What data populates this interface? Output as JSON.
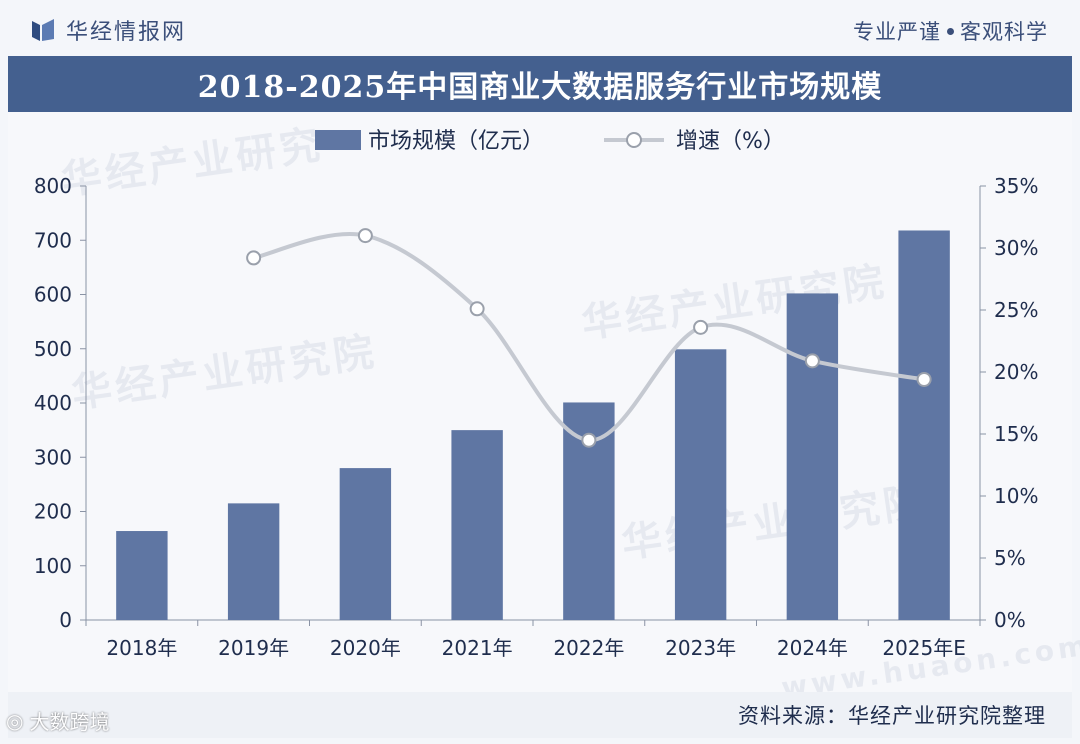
{
  "header": {
    "brand": "华经情报网",
    "slogan_left": "专业严谨",
    "slogan_right": "客观科学"
  },
  "footer": {
    "source": "资料来源：华经产业研究院整理",
    "corner_watermark": "大数跨境"
  },
  "watermarks": [
    "华经产业研究",
    "华经产业研究院",
    "华经产业研究院",
    "华经产业研究院",
    "www.huaon.com"
  ],
  "colors": {
    "bar": "#5f76a3",
    "line": "#c5c9d1",
    "title_band": "#44608f"
  },
  "chart_data": {
    "type": "bar",
    "title": "2018-2025年中国商业大数据服务行业市场规模",
    "categories": [
      "2018年",
      "2019年",
      "2020年",
      "2021年",
      "2022年",
      "2023年",
      "2024年",
      "2025年E"
    ],
    "series": [
      {
        "name": "市场规模（亿元）",
        "type": "bar",
        "axis": "left",
        "values": [
          164,
          215,
          280,
          350,
          401,
          499,
          602,
          718
        ]
      },
      {
        "name": "增速（%）",
        "type": "line",
        "axis": "right",
        "values": [
          null,
          29.2,
          31.0,
          25.1,
          14.5,
          23.6,
          20.9,
          19.4
        ]
      }
    ],
    "y_left": {
      "min": 0,
      "max": 800,
      "ticks": [
        "0",
        "100",
        "200",
        "300",
        "400",
        "500",
        "600",
        "700",
        "800"
      ]
    },
    "y_right": {
      "min": 0,
      "max": 35,
      "ticks": [
        "0%",
        "5%",
        "10%",
        "15%",
        "20%",
        "25%",
        "30%",
        "35%"
      ]
    },
    "legend_position": "top-center",
    "grid": false
  }
}
